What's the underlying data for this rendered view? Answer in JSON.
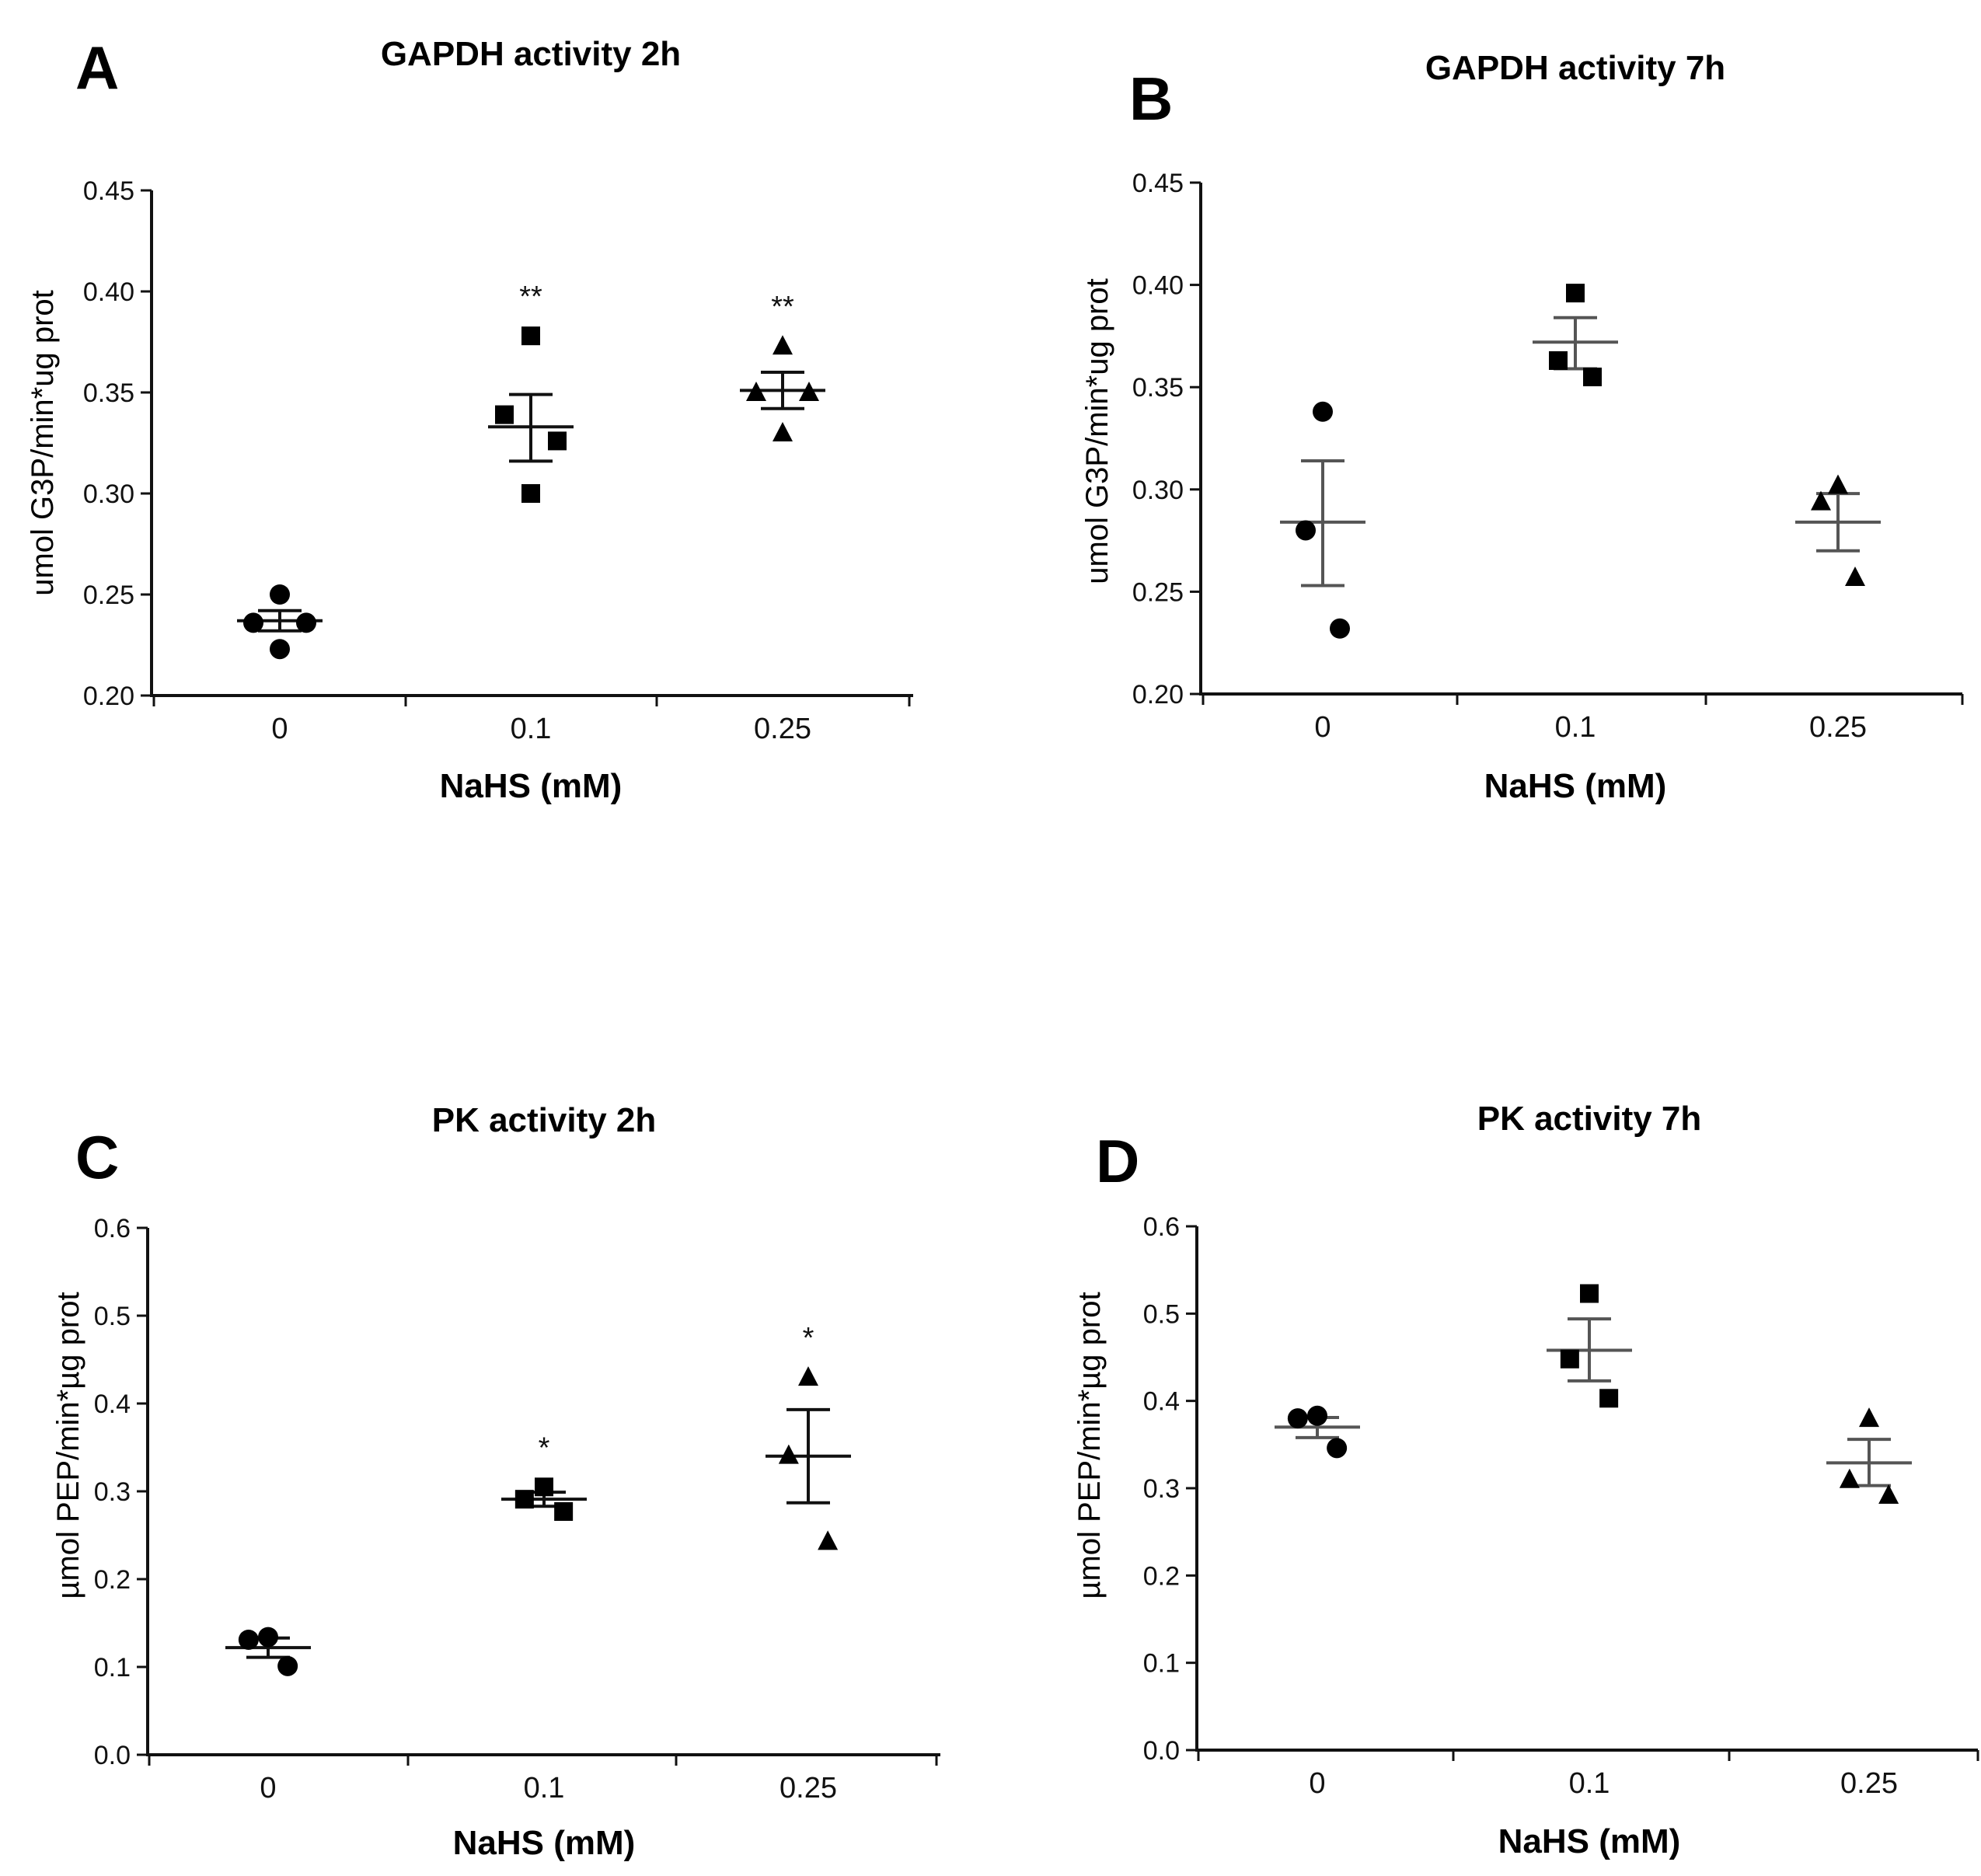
{
  "chart_data": [
    {
      "panel": "A",
      "type": "scatter",
      "title": "GAPDH activity 2h",
      "xlabel": "NaHS (mM)",
      "ylabel": "umol G3P/min*ug prot",
      "categories": [
        "0",
        "0.1",
        "0.25"
      ],
      "ylim": [
        0.2,
        0.45
      ],
      "yticks": [
        "0.20",
        "0.25",
        "0.30",
        "0.35",
        "0.40",
        "0.45"
      ],
      "markers": [
        "circle",
        "square",
        "triangle"
      ],
      "series": [
        {
          "category": "0",
          "points": [
            0.25,
            0.236,
            0.236,
            0.223
          ],
          "mean": 0.237,
          "sem_low": 0.232,
          "sem_high": 0.242,
          "annotation": ""
        },
        {
          "category": "0.1",
          "points": [
            0.378,
            0.339,
            0.326,
            0.3
          ],
          "mean": 0.333,
          "sem_low": 0.316,
          "sem_high": 0.349,
          "annotation": "**"
        },
        {
          "category": "0.25",
          "points": [
            0.373,
            0.35,
            0.35,
            0.33
          ],
          "mean": 0.351,
          "sem_low": 0.342,
          "sem_high": 0.36,
          "annotation": "**"
        }
      ]
    },
    {
      "panel": "B",
      "type": "scatter",
      "title": "GAPDH activity 7h",
      "xlabel": "NaHS (mM)",
      "ylabel": "umol G3P/min*ug prot",
      "categories": [
        "0",
        "0.1",
        "0.25"
      ],
      "ylim": [
        0.2,
        0.45
      ],
      "yticks": [
        "0.20",
        "0.25",
        "0.30",
        "0.35",
        "0.40",
        "0.45"
      ],
      "markers": [
        "circle",
        "square",
        "triangle"
      ],
      "series": [
        {
          "category": "0",
          "points": [
            0.338,
            0.28,
            0.232
          ],
          "mean": 0.284,
          "sem_low": 0.253,
          "sem_high": 0.314,
          "annotation": ""
        },
        {
          "category": "0.1",
          "points": [
            0.396,
            0.363,
            0.355
          ],
          "mean": 0.372,
          "sem_low": 0.359,
          "sem_high": 0.384,
          "annotation": ""
        },
        {
          "category": "0.25",
          "points": [
            0.302,
            0.294,
            0.257
          ],
          "mean": 0.284,
          "sem_low": 0.27,
          "sem_high": 0.298,
          "annotation": ""
        }
      ]
    },
    {
      "panel": "C",
      "type": "scatter",
      "title": "PK activity 2h",
      "xlabel": "NaHS (mM)",
      "ylabel": "µmol PEP/min*µg prot",
      "categories": [
        "0",
        "0.1",
        "0.25"
      ],
      "ylim": [
        0.0,
        0.6
      ],
      "yticks": [
        "0.0",
        "0.1",
        "0.2",
        "0.3",
        "0.4",
        "0.5",
        "0.6"
      ],
      "markers": [
        "circle",
        "square",
        "triangle"
      ],
      "series": [
        {
          "category": "0",
          "points": [
            0.134,
            0.131,
            0.101
          ],
          "mean": 0.122,
          "sem_low": 0.111,
          "sem_high": 0.133,
          "annotation": ""
        },
        {
          "category": "0.1",
          "points": [
            0.305,
            0.291,
            0.277
          ],
          "mean": 0.291,
          "sem_low": 0.283,
          "sem_high": 0.299,
          "annotation": "*"
        },
        {
          "category": "0.25",
          "points": [
            0.43,
            0.341,
            0.243
          ],
          "mean": 0.34,
          "sem_low": 0.287,
          "sem_high": 0.393,
          "annotation": "*"
        }
      ]
    },
    {
      "panel": "D",
      "type": "scatter",
      "title": "PK activity 7h",
      "xlabel": "NaHS (mM)",
      "ylabel": "µmol PEP/min*µg prot",
      "categories": [
        "0",
        "0.1",
        "0.25"
      ],
      "ylim": [
        0.0,
        0.6
      ],
      "yticks": [
        "0.0",
        "0.1",
        "0.2",
        "0.3",
        "0.4",
        "0.5",
        "0.6"
      ],
      "markers": [
        "circle",
        "square",
        "triangle"
      ],
      "series": [
        {
          "category": "0",
          "points": [
            0.383,
            0.38,
            0.346
          ],
          "mean": 0.37,
          "sem_low": 0.358,
          "sem_high": 0.381,
          "annotation": ""
        },
        {
          "category": "0.1",
          "points": [
            0.523,
            0.448,
            0.403
          ],
          "mean": 0.458,
          "sem_low": 0.423,
          "sem_high": 0.494,
          "annotation": ""
        },
        {
          "category": "0.25",
          "points": [
            0.38,
            0.31,
            0.292
          ],
          "mean": 0.329,
          "sem_low": 0.303,
          "sem_high": 0.356,
          "annotation": ""
        }
      ]
    }
  ]
}
